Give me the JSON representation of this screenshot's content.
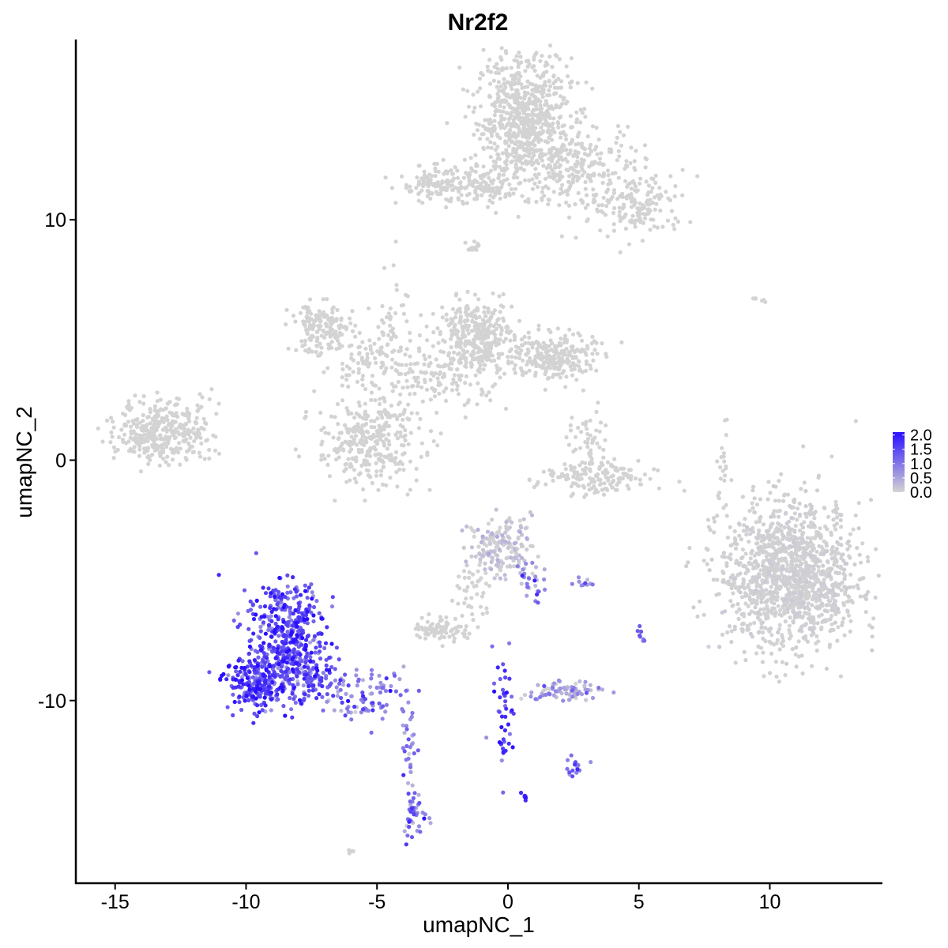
{
  "chart_data": {
    "type": "scatter",
    "title": "Nr2f2",
    "xlabel": "umapNC_1",
    "ylabel": "umapNC_2",
    "xlim": [
      -16.5,
      14.3
    ],
    "ylim": [
      -17.6,
      17.5
    ],
    "x_ticks": [
      -15,
      -10,
      -5,
      0,
      5,
      10
    ],
    "x_tick_labels": [
      "-15",
      "-10",
      "-5",
      "0",
      "5",
      "10"
    ],
    "y_ticks": [
      -10,
      0,
      10
    ],
    "y_tick_labels": [
      "-10",
      "0",
      "10"
    ],
    "grid": false,
    "legend": {
      "position": "right",
      "labels": [
        "2.0",
        "1.5",
        "1.0",
        "0.5",
        "0.0"
      ],
      "values": [
        2.0,
        1.5,
        1.0,
        0.5,
        0.0
      ],
      "low_color": "#d3d3d3",
      "high_color": "#2a0fff"
    },
    "expression_range": [
      0,
      2.1
    ],
    "clusters": [
      {
        "cx": 0.6,
        "cy": 14.2,
        "sx": 0.9,
        "sy": 1.3,
        "n": 700,
        "expr": 0,
        "expr_spread": 0
      },
      {
        "cx": 2.5,
        "cy": 12.3,
        "sx": 1.3,
        "sy": 0.9,
        "n": 250,
        "expr": 0,
        "expr_spread": 0
      },
      {
        "cx": 5.0,
        "cy": 10.6,
        "sx": 0.9,
        "sy": 0.7,
        "n": 160,
        "expr": 0,
        "expr_spread": 0
      },
      {
        "cx": -2.4,
        "cy": 11.5,
        "sx": 0.9,
        "sy": 0.4,
        "n": 150,
        "expr": 0,
        "expr_spread": 0
      },
      {
        "cx": -1.0,
        "cy": 11.3,
        "sx": 0.8,
        "sy": 0.25,
        "n": 60,
        "expr": 0,
        "expr_spread": 0
      },
      {
        "cx": -1.3,
        "cy": 8.8,
        "sx": 0.15,
        "sy": 0.15,
        "n": 12,
        "expr": 0,
        "expr_spread": 0
      },
      {
        "cx": -7.1,
        "cy": 5.5,
        "sx": 0.6,
        "sy": 0.5,
        "n": 160,
        "expr": 0,
        "expr_spread": 0
      },
      {
        "cx": -5.2,
        "cy": 4.2,
        "sx": 1.0,
        "sy": 0.5,
        "n": 70,
        "expr": 0,
        "expr_spread": 0
      },
      {
        "cx": -4.4,
        "cy": 6.0,
        "sx": 0.3,
        "sy": 1.2,
        "n": 45,
        "expr": 0,
        "expr_spread": 0
      },
      {
        "cx": -1.2,
        "cy": 5.2,
        "sx": 0.7,
        "sy": 0.7,
        "n": 350,
        "expr": 0,
        "expr_spread": 0
      },
      {
        "cx": 1.7,
        "cy": 4.3,
        "sx": 0.8,
        "sy": 0.5,
        "n": 260,
        "expr": 0,
        "expr_spread": 0
      },
      {
        "cx": -2.8,
        "cy": 3.4,
        "sx": 1.4,
        "sy": 0.7,
        "n": 150,
        "expr": 0,
        "expr_spread": 0
      },
      {
        "cx": -5.3,
        "cy": 0.8,
        "sx": 1.0,
        "sy": 0.9,
        "n": 320,
        "expr": 0,
        "expr_spread": 0
      },
      {
        "cx": -13.3,
        "cy": 1.2,
        "sx": 0.8,
        "sy": 0.65,
        "n": 330,
        "expr": 0,
        "expr_spread": 0
      },
      {
        "cx": -11.8,
        "cy": 1.3,
        "sx": 0.4,
        "sy": 0.8,
        "n": 30,
        "expr": 0,
        "expr_spread": 0
      },
      {
        "cx": 3.1,
        "cy": 0.5,
        "sx": 0.4,
        "sy": 0.8,
        "n": 60,
        "expr": 0,
        "expr_spread": 0
      },
      {
        "cx": 3.4,
        "cy": -0.8,
        "sx": 1.1,
        "sy": 0.35,
        "n": 140,
        "expr": 0,
        "expr_spread": 0
      },
      {
        "cx": 8.2,
        "cy": 0.0,
        "sx": 0.12,
        "sy": 0.8,
        "n": 18,
        "expr": 0,
        "expr_spread": 0
      },
      {
        "cx": 10.8,
        "cy": -4.8,
        "sx": 1.3,
        "sy": 1.5,
        "n": 1300,
        "expr": 0.02,
        "expr_spread": 0.03
      },
      {
        "cx": -0.3,
        "cy": -3.6,
        "sx": 0.6,
        "sy": 0.6,
        "n": 170,
        "expr": 0.1,
        "expr_spread": 0.15
      },
      {
        "cx": -1.4,
        "cy": -5.6,
        "sx": 0.4,
        "sy": 0.6,
        "n": 40,
        "expr": 0,
        "expr_spread": 0
      },
      {
        "cx": 0.9,
        "cy": -5.0,
        "sx": 0.35,
        "sy": 0.4,
        "n": 30,
        "expr": 0.9,
        "expr_spread": 0.5
      },
      {
        "cx": -2.6,
        "cy": -7.0,
        "sx": 0.5,
        "sy": 0.25,
        "n": 80,
        "expr": 0,
        "expr_spread": 0
      },
      {
        "cx": -8.5,
        "cy": -7.3,
        "sx": 0.75,
        "sy": 1.2,
        "n": 420,
        "expr": 1.45,
        "expr_spread": 0.45
      },
      {
        "cx": -9.6,
        "cy": -9.3,
        "sx": 0.6,
        "sy": 0.55,
        "n": 230,
        "expr": 1.4,
        "expr_spread": 0.45
      },
      {
        "cx": -7.6,
        "cy": -8.9,
        "sx": 0.55,
        "sy": 0.55,
        "n": 120,
        "expr": 1.25,
        "expr_spread": 0.45
      },
      {
        "cx": -5.3,
        "cy": -9.8,
        "sx": 0.9,
        "sy": 0.5,
        "n": 90,
        "expr": 0.95,
        "expr_spread": 0.45
      },
      {
        "cx": -3.8,
        "cy": -12.0,
        "sx": 0.15,
        "sy": 1.0,
        "n": 30,
        "expr": 0.8,
        "expr_spread": 0.4
      },
      {
        "cx": -3.6,
        "cy": -14.8,
        "sx": 0.25,
        "sy": 0.5,
        "n": 40,
        "expr": 1.1,
        "expr_spread": 0.45
      },
      {
        "cx": -0.2,
        "cy": -10.4,
        "sx": 0.2,
        "sy": 1.2,
        "n": 45,
        "expr": 1.5,
        "expr_spread": 0.4
      },
      {
        "cx": 2.3,
        "cy": -9.6,
        "sx": 0.7,
        "sy": 0.25,
        "n": 80,
        "expr": 0.45,
        "expr_spread": 0.35
      },
      {
        "cx": 2.5,
        "cy": -12.8,
        "sx": 0.2,
        "sy": 0.2,
        "n": 16,
        "expr": 1.1,
        "expr_spread": 0.4
      },
      {
        "cx": 0.6,
        "cy": -14.0,
        "sx": 0.08,
        "sy": 0.08,
        "n": 6,
        "expr": 1.6,
        "expr_spread": 0.3
      },
      {
        "cx": 5.1,
        "cy": -7.4,
        "sx": 0.1,
        "sy": 0.3,
        "n": 8,
        "expr": 0.9,
        "expr_spread": 0.4
      },
      {
        "cx": 2.9,
        "cy": -5.1,
        "sx": 0.3,
        "sy": 0.1,
        "n": 10,
        "expr": 0.6,
        "expr_spread": 0.4
      },
      {
        "cx": -6.0,
        "cy": -16.3,
        "sx": 0.1,
        "sy": 0.08,
        "n": 5,
        "expr": 0,
        "expr_spread": 0
      },
      {
        "cx": 9.6,
        "cy": 6.7,
        "sx": 0.15,
        "sy": 0.08,
        "n": 6,
        "expr": 0,
        "expr_spread": 0
      }
    ]
  }
}
